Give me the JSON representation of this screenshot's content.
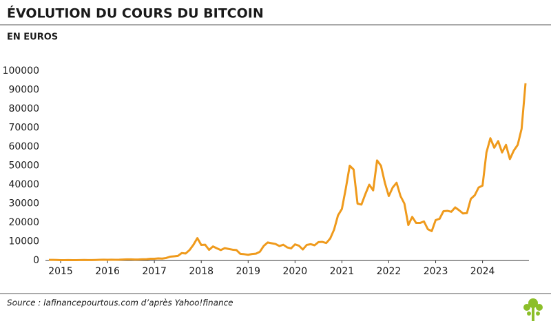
{
  "chart_data": {
    "type": "line",
    "title": "ÉVOLUTION DU COURS DU BITCOIN",
    "subtitle": "EN EUROS",
    "source": "Source : lafinancepourtous.com d’après Yahoo!finance",
    "color": "#ef9a1c",
    "categories": [
      null,
      null,
      null,
      "2015",
      null,
      null,
      null,
      null,
      null,
      null,
      null,
      null,
      null,
      null,
      null,
      "2016",
      null,
      null,
      null,
      null,
      null,
      null,
      null,
      null,
      null,
      null,
      null,
      "2017",
      null,
      null,
      null,
      null,
      null,
      null,
      null,
      null,
      null,
      null,
      null,
      "2018",
      null,
      null,
      null,
      null,
      null,
      null,
      null,
      null,
      null,
      null,
      null,
      "2019",
      null,
      null,
      null,
      null,
      null,
      null,
      null,
      null,
      null,
      null,
      null,
      "2020",
      null,
      null,
      null,
      null,
      null,
      null,
      null,
      null,
      null,
      null,
      null,
      "2021",
      null,
      null,
      null,
      null,
      null,
      null,
      null,
      null,
      null,
      null,
      null,
      "2022",
      null,
      null,
      null,
      null,
      null,
      null,
      null,
      null,
      null,
      null,
      null,
      "2023",
      null,
      null,
      null,
      null,
      null,
      null,
      null,
      null,
      null,
      null,
      null,
      "2024",
      null,
      null,
      null,
      null,
      null,
      null,
      null,
      null,
      null,
      null,
      null
    ],
    "values": [
      300,
      300,
      260,
      180,
      200,
      230,
      200,
      200,
      220,
      260,
      210,
      210,
      290,
      340,
      400,
      350,
      400,
      370,
      400,
      480,
      600,
      600,
      520,
      540,
      630,
      700,
      900,
      900,
      1100,
      1000,
      1300,
      2000,
      2200,
      2400,
      3900,
      3700,
      5500,
      8300,
      11800,
      8200,
      8300,
      5600,
      7400,
      6400,
      5500,
      6500,
      6100,
      5700,
      5500,
      3500,
      3300,
      3000,
      3400,
      3600,
      4600,
      7700,
      9500,
      9100,
      8700,
      7600,
      8300,
      6900,
      6400,
      8500,
      7800,
      5800,
      8200,
      8600,
      8000,
      9700,
      9800,
      9200,
      11600,
      16300,
      23800,
      27200,
      38000,
      50000,
      48000,
      30000,
      29500,
      35000,
      40000,
      37000,
      52800,
      50000,
      41000,
      34000,
      38500,
      41000,
      34000,
      30000,
      18700,
      23000,
      19800,
      19800,
      20600,
      16500,
      15500,
      21300,
      22000,
      26000,
      26200,
      25700,
      28000,
      26500,
      24800,
      25000,
      32500,
      34400,
      38500,
      39500,
      57000,
      64500,
      59500,
      63000,
      57000,
      61000,
      53500,
      58000,
      61000,
      69500,
      93500
    ],
    "ylim": [
      0,
      100000
    ],
    "yticks": [
      0,
      10000,
      20000,
      30000,
      40000,
      50000,
      60000,
      70000,
      80000,
      90000,
      100000
    ],
    "grid": false
  }
}
